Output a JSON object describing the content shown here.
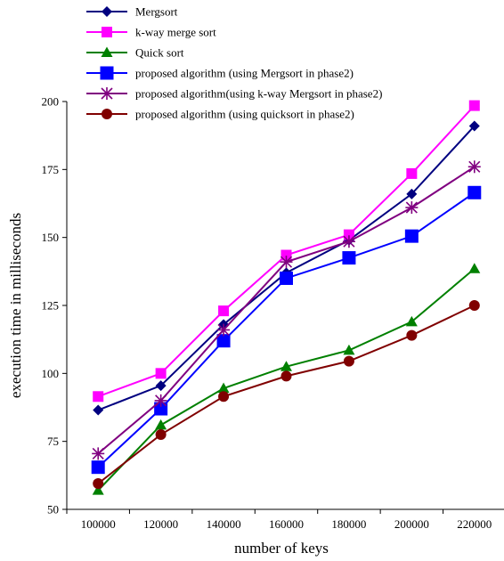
{
  "chart_data": {
    "type": "line",
    "xlabel": "number of keys",
    "ylabel": "execution time in milliseconds",
    "categories": [
      "100000",
      "120000",
      "140000",
      "160000",
      "180000",
      "200000",
      "220000"
    ],
    "ylim": [
      50,
      200
    ],
    "yticks": [
      "50",
      "75",
      "100",
      "125",
      "150",
      "175",
      "200"
    ],
    "grid": false,
    "legend_position": "top-left",
    "series": [
      {
        "name": "Mergsort",
        "color": "#000080",
        "marker": "diamond",
        "values": [
          86.5,
          95.5,
          118,
          137,
          149,
          166,
          191
        ]
      },
      {
        "name": "k-way merge sort",
        "color": "#ff00ff",
        "marker": "square",
        "values": [
          91.5,
          100,
          123,
          143.5,
          151,
          173.5,
          198.5
        ]
      },
      {
        "name": "Quick sort",
        "color": "#008000",
        "marker": "triangle",
        "values": [
          57,
          81,
          94.5,
          102.5,
          108.5,
          119,
          138.5
        ]
      },
      {
        "name": "proposed algorithm (using Mergsort in phase2)",
        "color": "#0000ff",
        "marker": "square-large",
        "values": [
          65.5,
          87,
          112,
          135,
          142.5,
          150.5,
          166.5
        ]
      },
      {
        "name": "proposed algorithm(using k-way Mergsort in phase2)",
        "color": "#800080",
        "marker": "asterisk",
        "values": [
          70.5,
          90,
          116,
          141,
          148.5,
          161,
          176
        ]
      },
      {
        "name": "proposed algorithm (using quicksort in phase2)",
        "color": "#800000",
        "marker": "circle",
        "values": [
          59.5,
          77.5,
          91.5,
          99,
          104.5,
          114,
          125
        ]
      }
    ]
  }
}
